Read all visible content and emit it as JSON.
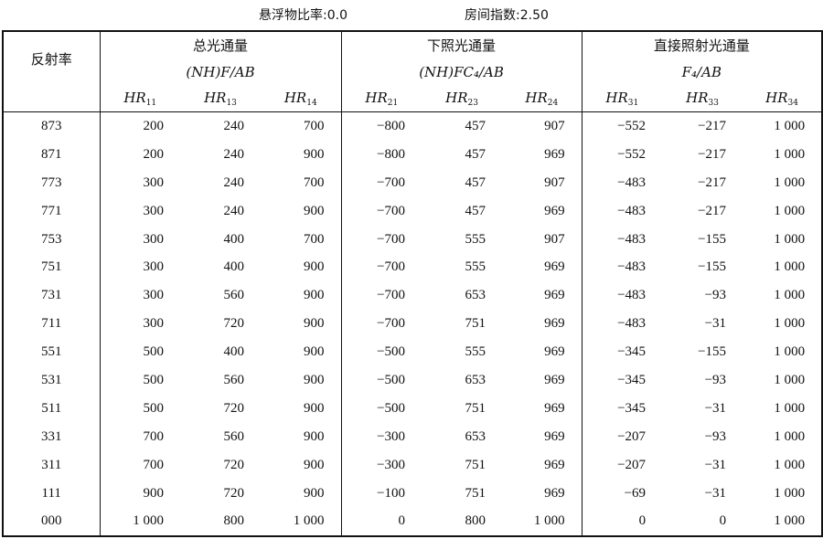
{
  "caption": {
    "suspension_ratio": "悬浮物比率:0.0",
    "room_index": "房间指数:2.50"
  },
  "header": {
    "row_label": "反射率",
    "groups": [
      {
        "title": "总光通量",
        "formula": "(NH)F/AB",
        "cols": [
          [
            "HR",
            "11"
          ],
          [
            "HR",
            "13"
          ],
          [
            "HR",
            "14"
          ]
        ]
      },
      {
        "title": "下照光通量",
        "formula": "(NH)FC₄/AB",
        "cols": [
          [
            "HR",
            "21"
          ],
          [
            "HR",
            "23"
          ],
          [
            "HR",
            "24"
          ]
        ]
      },
      {
        "title": "直接照射光通量",
        "formula": "F₄/AB",
        "cols": [
          [
            "HR",
            "31"
          ],
          [
            "HR",
            "33"
          ],
          [
            "HR",
            "34"
          ]
        ]
      }
    ]
  },
  "rows": [
    [
      "873",
      "200",
      "240",
      "700",
      "−800",
      "457",
      "907",
      "−552",
      "−217",
      "1 000"
    ],
    [
      "871",
      "200",
      "240",
      "900",
      "−800",
      "457",
      "969",
      "−552",
      "−217",
      "1 000"
    ],
    [
      "773",
      "300",
      "240",
      "700",
      "−700",
      "457",
      "907",
      "−483",
      "−217",
      "1 000"
    ],
    [
      "771",
      "300",
      "240",
      "900",
      "−700",
      "457",
      "969",
      "−483",
      "−217",
      "1 000"
    ],
    [
      "753",
      "300",
      "400",
      "700",
      "−700",
      "555",
      "907",
      "−483",
      "−155",
      "1 000"
    ],
    [
      "751",
      "300",
      "400",
      "900",
      "−700",
      "555",
      "969",
      "−483",
      "−155",
      "1 000"
    ],
    [
      "731",
      "300",
      "560",
      "900",
      "−700",
      "653",
      "969",
      "−483",
      "−93",
      "1 000"
    ],
    [
      "711",
      "300",
      "720",
      "900",
      "−700",
      "751",
      "969",
      "−483",
      "−31",
      "1 000"
    ],
    [
      "551",
      "500",
      "400",
      "900",
      "−500",
      "555",
      "969",
      "−345",
      "−155",
      "1 000"
    ],
    [
      "531",
      "500",
      "560",
      "900",
      "−500",
      "653",
      "969",
      "−345",
      "−93",
      "1 000"
    ],
    [
      "511",
      "500",
      "720",
      "900",
      "−500",
      "751",
      "969",
      "−345",
      "−31",
      "1 000"
    ],
    [
      "331",
      "700",
      "560",
      "900",
      "−300",
      "653",
      "969",
      "−207",
      "−93",
      "1 000"
    ],
    [
      "311",
      "700",
      "720",
      "900",
      "−300",
      "751",
      "969",
      "−207",
      "−31",
      "1 000"
    ],
    [
      "111",
      "900",
      "720",
      "900",
      "−100",
      "751",
      "969",
      "−69",
      "−31",
      "1 000"
    ],
    [
      "000",
      "1 000",
      "800",
      "1 000",
      "0",
      "800",
      "1 000",
      "0",
      "0",
      "1 000"
    ]
  ]
}
